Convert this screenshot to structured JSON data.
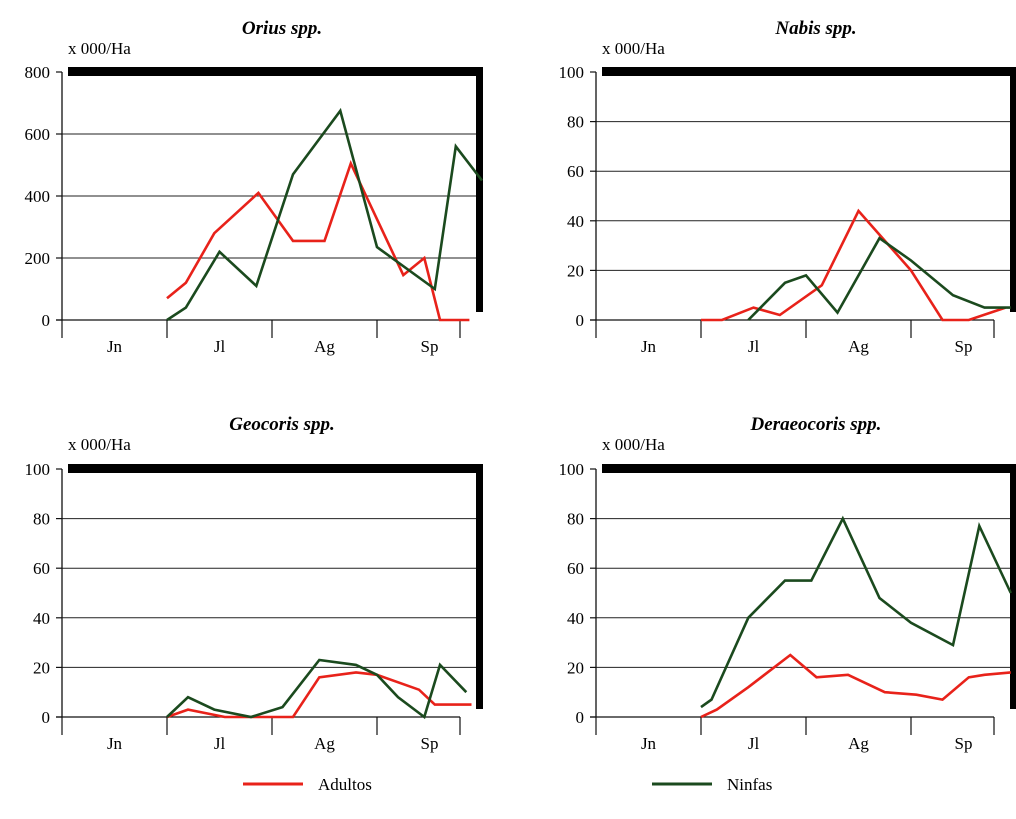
{
  "legend": {
    "adultos": {
      "label": "Adultos",
      "color": "#e8221a"
    },
    "ninfas": {
      "label": "Ninfas",
      "color": "#1b4a1e"
    }
  },
  "chart_data": [
    {
      "type": "line",
      "title": "Orius spp.",
      "ylabel": "x 000/Ha",
      "ylim": [
        0,
        800
      ],
      "yticks": [
        0,
        200,
        400,
        600,
        800
      ],
      "categories": [
        "Jn",
        "Jl",
        "Ag",
        "Sp"
      ],
      "xlim": [
        0,
        4
      ],
      "series": [
        {
          "name": "Adultos",
          "x": [
            1.0,
            1.18,
            1.45,
            1.87,
            2.2,
            2.5,
            2.75,
            3.25,
            3.45,
            3.6,
            3.88
          ],
          "y": [
            70,
            120,
            280,
            410,
            255,
            255,
            505,
            145,
            200,
            0,
            0
          ]
        },
        {
          "name": "Ninfas",
          "x": [
            1.0,
            1.18,
            1.5,
            1.85,
            2.2,
            2.65,
            3.0,
            3.55,
            3.75,
            4.0
          ],
          "y": [
            0,
            40,
            220,
            110,
            470,
            675,
            235,
            100,
            560,
            450
          ]
        }
      ]
    },
    {
      "type": "line",
      "title": "Nabis spp.",
      "ylabel": "x 000/Ha",
      "ylim": [
        0,
        100
      ],
      "yticks": [
        0,
        20,
        40,
        60,
        80,
        100
      ],
      "categories": [
        "Jn",
        "Jl",
        "Ag",
        "Sp"
      ],
      "xlim": [
        0,
        4
      ],
      "series": [
        {
          "name": "Adultos",
          "x": [
            1.0,
            1.2,
            1.5,
            1.75,
            2.15,
            2.5,
            3.0,
            3.3,
            3.55,
            3.9
          ],
          "y": [
            0,
            0,
            5,
            2,
            14,
            44,
            20,
            0,
            0,
            5
          ]
        },
        {
          "name": "Ninfas",
          "x": [
            1.45,
            1.8,
            2.0,
            2.3,
            2.7,
            3.0,
            3.4,
            3.7,
            3.95
          ],
          "y": [
            0,
            15,
            18,
            3,
            33,
            24,
            10,
            5,
            5
          ]
        }
      ]
    },
    {
      "type": "line",
      "title": "Geocoris spp.",
      "ylabel": "x 000/Ha",
      "ylim": [
        0,
        100
      ],
      "yticks": [
        0,
        20,
        40,
        60,
        80,
        100
      ],
      "categories": [
        "Jn",
        "Jl",
        "Ag",
        "Sp"
      ],
      "xlim": [
        0,
        4
      ],
      "series": [
        {
          "name": "Adultos",
          "x": [
            1.0,
            1.2,
            1.55,
            1.85,
            2.2,
            2.45,
            2.8,
            3.0,
            3.4,
            3.55,
            3.9
          ],
          "y": [
            0,
            3,
            0,
            0,
            0,
            16,
            18,
            17,
            11,
            5,
            5
          ]
        },
        {
          "name": "Ninfas",
          "x": [
            1.0,
            1.2,
            1.45,
            1.8,
            2.1,
            2.45,
            2.8,
            3.0,
            3.2,
            3.45,
            3.6,
            3.85
          ],
          "y": [
            0,
            8,
            3,
            0,
            4,
            23,
            21,
            17,
            8,
            0,
            21,
            10
          ]
        }
      ]
    },
    {
      "type": "line",
      "title": "Deraeocoris spp.",
      "ylabel": "x 000/Ha",
      "ylim": [
        0,
        100
      ],
      "yticks": [
        0,
        20,
        40,
        60,
        80,
        100
      ],
      "categories": [
        "Jn",
        "Jl",
        "Ag",
        "Sp"
      ],
      "xlim": [
        0,
        4
      ],
      "series": [
        {
          "name": "Adultos",
          "x": [
            1.0,
            1.15,
            1.45,
            1.85,
            2.1,
            2.4,
            2.75,
            3.05,
            3.3,
            3.55,
            3.7,
            3.95
          ],
          "y": [
            0,
            3,
            12,
            25,
            16,
            17,
            10,
            9,
            7,
            16,
            17,
            18
          ]
        },
        {
          "name": "Ninfas",
          "x": [
            1.0,
            1.1,
            1.45,
            1.8,
            2.05,
            2.35,
            2.7,
            3.0,
            3.4,
            3.65,
            3.95
          ],
          "y": [
            4,
            7,
            40,
            55,
            55,
            80,
            48,
            38,
            29,
            77,
            50
          ]
        }
      ]
    }
  ]
}
